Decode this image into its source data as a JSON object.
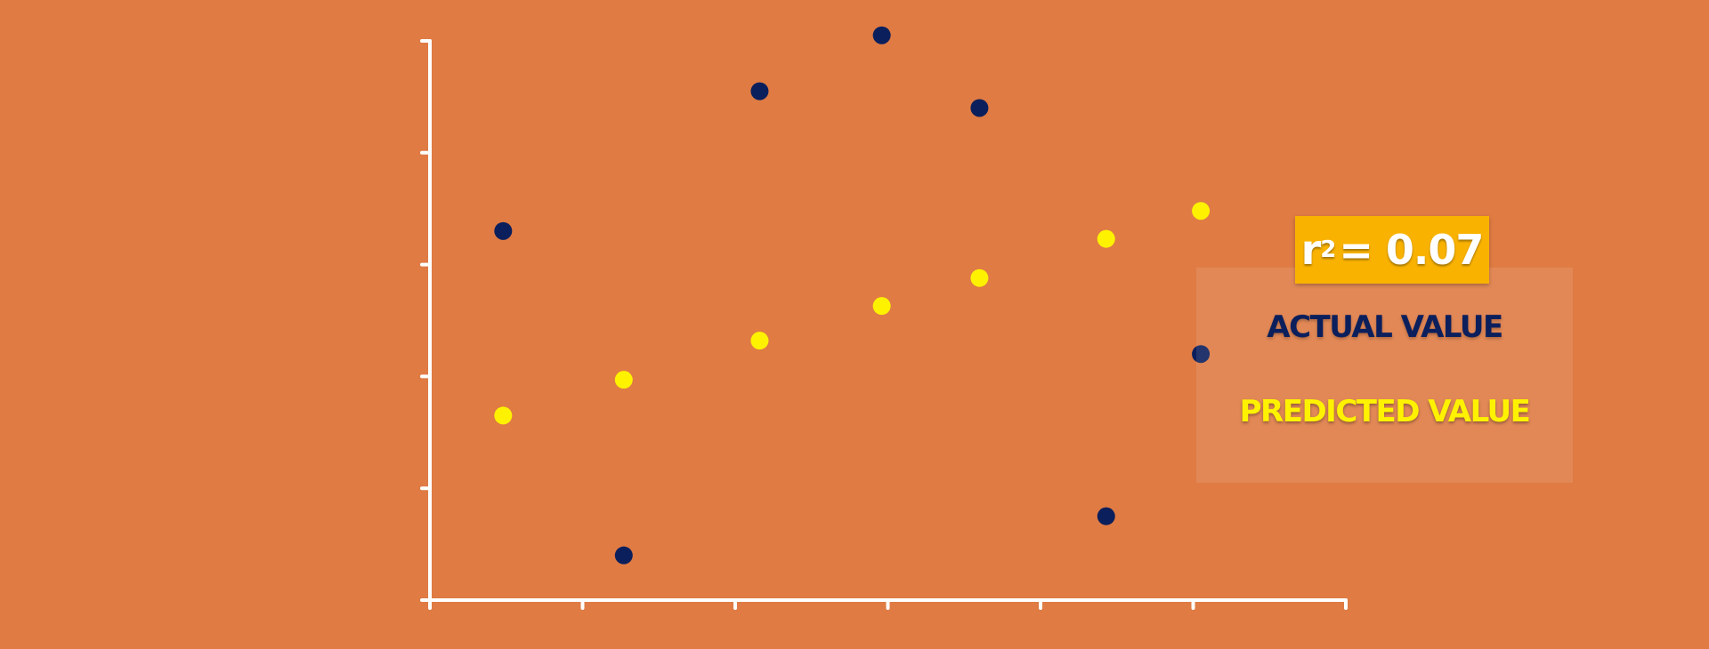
{
  "chart_data": {
    "type": "scatter",
    "xlim": [
      0,
      6
    ],
    "ylim": [
      0,
      5
    ],
    "x_ticks": [
      0,
      1,
      2,
      3,
      4,
      5,
      6
    ],
    "y_ticks": [
      0,
      1,
      2,
      3,
      4,
      5
    ],
    "series": [
      {
        "name": "ACTUAL VALUE",
        "color": "#0B1F5C",
        "x": [
          0.48,
          1.27,
          2.16,
          2.96,
          3.6,
          4.43,
          5.05
        ],
        "y": [
          3.3,
          0.4,
          4.55,
          5.05,
          4.4,
          0.75,
          2.2
        ]
      },
      {
        "name": "PREDICTED VALUE",
        "color": "#FFF200",
        "x": [
          0.48,
          1.27,
          2.16,
          2.96,
          3.6,
          4.43,
          5.05
        ],
        "y": [
          1.65,
          1.97,
          2.32,
          2.63,
          2.88,
          3.23,
          3.48
        ]
      }
    ]
  },
  "stat": {
    "r_symbol": "r",
    "r_exponent": "2",
    "r_value_text": "= 0.07"
  },
  "legend": {
    "actual_label": "ACTUAL VALUE",
    "predicted_label": "PREDICTED VALUE"
  },
  "colors": {
    "background": "#DF7B43",
    "axis": "#FFFFFF",
    "badge": "#F9B200"
  }
}
